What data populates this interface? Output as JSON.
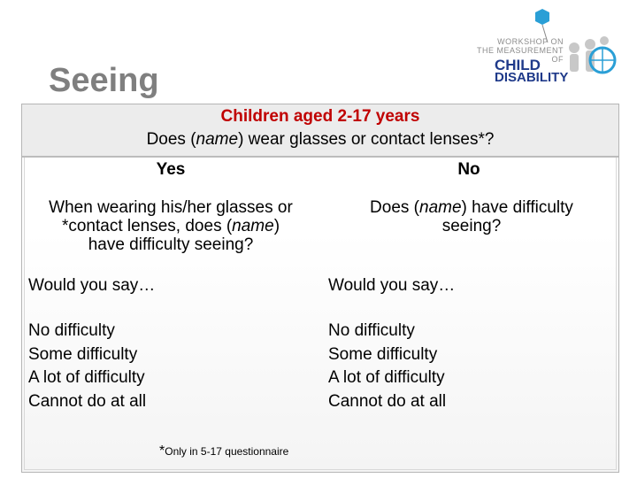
{
  "page": {
    "title": "Seeing"
  },
  "logo": {
    "line1": "WORKSHOP ON",
    "line2": "THE MEASUREMENT",
    "line3": "OF",
    "word1": "CHILD",
    "word2": "DISABILITY"
  },
  "table": {
    "header_line1": "Children aged 2-17 years",
    "header_line2_pre": "Does (",
    "header_line2_em": "name",
    "header_line2_post": ") wear glasses or contact lenses*?",
    "col_yes": "Yes",
    "col_no": "No",
    "yes_q_1": "When wearing his/her glasses or",
    "yes_q_2_pre": "*contact lenses, does (",
    "yes_q_2_em": "name",
    "yes_q_2_post": ")",
    "yes_q_3": "have difficulty seeing?",
    "no_q_1_pre": "Does (",
    "no_q_1_em": "name",
    "no_q_1_post": ") have difficulty",
    "no_q_2": "seeing?",
    "would_say": "Would you say…",
    "options": [
      "No difficulty",
      "Some difficulty",
      "A lot of difficulty",
      "Cannot do at all"
    ],
    "footnote_star": "*",
    "footnote_text": "Only in 5-17 questionnaire"
  },
  "colors": {
    "title": "#7f7f7f",
    "header_accent": "#c00000",
    "logo_blue": "#1f3a8a"
  }
}
